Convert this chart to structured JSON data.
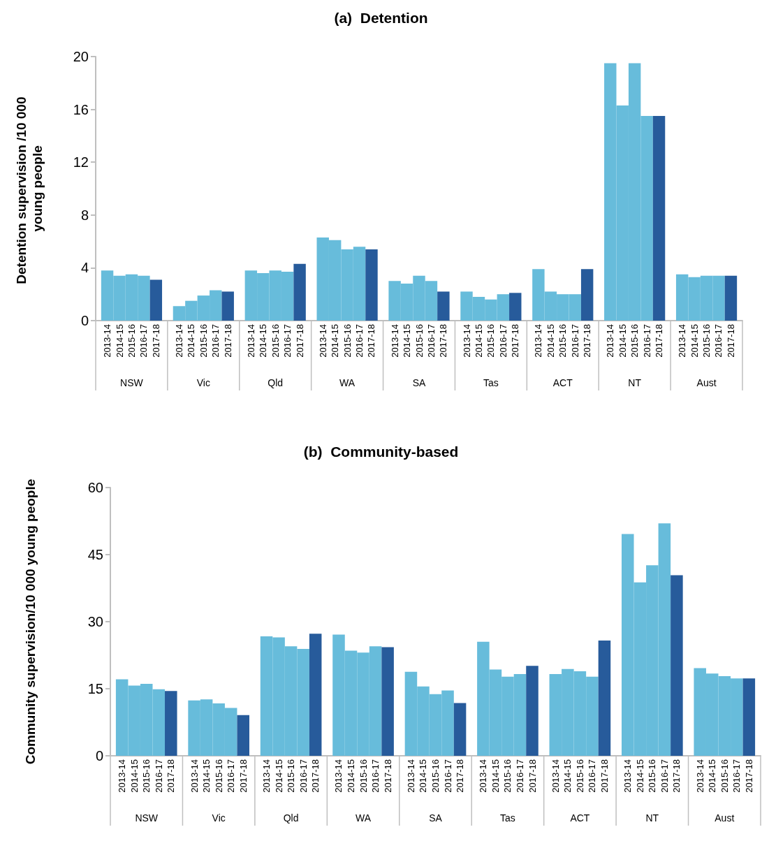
{
  "chart_data": [
    {
      "type": "bar",
      "title": "(a)  Detention",
      "ylabel": "Detention supervision /10 000 young people",
      "categories": [
        "2013-14",
        "2014-15",
        "2015-16",
        "2016-17",
        "2017-18",
        "2013-14",
        "2014-15",
        "2015-16",
        "2016-17",
        "2017-18",
        "2013-14",
        "2014-15",
        "2015-16",
        "2016-17",
        "2017-18",
        "2013-14",
        "2014-15",
        "2015-16",
        "2016-17",
        "2017-18",
        "2013-14",
        "2014-15",
        "2015-16",
        "2016-17",
        "2017-18",
        "2013-14",
        "2014-15",
        "2015-16",
        "2016-17",
        "2017-18",
        "2013-14",
        "2014-15",
        "2015-16",
        "2016-17",
        "2017-18",
        "2013-14",
        "2014-15",
        "2015-16",
        "2016-17",
        "2017-18",
        "2013-14",
        "2014-15",
        "2015-16",
        "2016-17",
        "2017-18"
      ],
      "values": [
        3.8,
        3.4,
        3.5,
        3.4,
        3.1,
        1.1,
        1.5,
        1.9,
        2.3,
        2.2,
        3.8,
        3.6,
        3.8,
        3.7,
        4.3,
        6.3,
        6.1,
        5.4,
        5.6,
        5.4,
        3.0,
        2.8,
        3.4,
        3.0,
        2.2,
        2.2,
        1.8,
        1.6,
        2.0,
        2.1,
        3.9,
        2.2,
        2.0,
        2.0,
        3.9,
        19.5,
        16.3,
        19.5,
        15.5,
        15.5,
        3.5,
        3.3,
        3.4,
        3.4,
        3.4
      ],
      "colors": [
        "#67bcdb",
        "#67bcdb",
        "#67bcdb",
        "#67bcdb",
        "#275b9b",
        "#67bcdb",
        "#67bcdb",
        "#67bcdb",
        "#67bcdb",
        "#275b9b",
        "#67bcdb",
        "#67bcdb",
        "#67bcdb",
        "#67bcdb",
        "#275b9b",
        "#67bcdb",
        "#67bcdb",
        "#67bcdb",
        "#67bcdb",
        "#275b9b",
        "#67bcdb",
        "#67bcdb",
        "#67bcdb",
        "#67bcdb",
        "#275b9b",
        "#67bcdb",
        "#67bcdb",
        "#67bcdb",
        "#67bcdb",
        "#275b9b",
        "#67bcdb",
        "#67bcdb",
        "#67bcdb",
        "#67bcdb",
        "#275b9b",
        "#67bcdb",
        "#67bcdb",
        "#67bcdb",
        "#67bcdb",
        "#275b9b",
        "#67bcdb",
        "#67bcdb",
        "#67bcdb",
        "#67bcdb",
        "#275b9b"
      ],
      "annotations": [
        "NSW",
        "Vic",
        "Qld",
        "WA",
        "SA",
        "Tas",
        "ACT",
        "NT",
        "Aust"
      ],
      "ylim": [
        0,
        20
      ],
      "yticks": [
        0,
        4,
        8,
        12,
        16,
        20
      ],
      "grid": false
    },
    {
      "type": "bar",
      "title": "(b)  Community-based",
      "ylabel": "Community supervision/10 000 young people",
      "categories": [
        "2013-14",
        "2014-15",
        "2015-16",
        "2016-17",
        "2017-18",
        "2013-14",
        "2014-15",
        "2015-16",
        "2016-17",
        "2017-18",
        "2013-14",
        "2014-15",
        "2015-16",
        "2016-17",
        "2017-18",
        "2013-14",
        "2014-15",
        "2015-16",
        "2016-17",
        "2017-18",
        "2013-14",
        "2014-15",
        "2015-16",
        "2016-17",
        "2017-18",
        "2013-14",
        "2014-15",
        "2015-16",
        "2016-17",
        "2017-18",
        "2013-14",
        "2014-15",
        "2015-16",
        "2016-17",
        "2017-18",
        "2013-14",
        "2014-15",
        "2015-16",
        "2016-17",
        "2017-18",
        "2013-14",
        "2014-15",
        "2015-16",
        "2016-17",
        "2017-18"
      ],
      "values": [
        17.1,
        15.7,
        16.1,
        14.9,
        14.5,
        12.4,
        12.6,
        11.7,
        10.7,
        9.1,
        26.7,
        26.5,
        24.5,
        23.9,
        27.3,
        27.1,
        23.5,
        23.1,
        24.5,
        24.3,
        18.8,
        15.5,
        13.8,
        14.6,
        11.8,
        25.5,
        19.3,
        17.7,
        18.3,
        20.1,
        18.3,
        19.4,
        18.9,
        17.7,
        25.8,
        49.6,
        38.8,
        42.6,
        52.0,
        40.4,
        19.6,
        18.4,
        17.8,
        17.3,
        17.3
      ],
      "colors": [
        "#67bcdb",
        "#67bcdb",
        "#67bcdb",
        "#67bcdb",
        "#275b9b",
        "#67bcdb",
        "#67bcdb",
        "#67bcdb",
        "#67bcdb",
        "#275b9b",
        "#67bcdb",
        "#67bcdb",
        "#67bcdb",
        "#67bcdb",
        "#275b9b",
        "#67bcdb",
        "#67bcdb",
        "#67bcdb",
        "#67bcdb",
        "#275b9b",
        "#67bcdb",
        "#67bcdb",
        "#67bcdb",
        "#67bcdb",
        "#275b9b",
        "#67bcdb",
        "#67bcdb",
        "#67bcdb",
        "#67bcdb",
        "#275b9b",
        "#67bcdb",
        "#67bcdb",
        "#67bcdb",
        "#67bcdb",
        "#275b9b",
        "#67bcdb",
        "#67bcdb",
        "#67bcdb",
        "#67bcdb",
        "#275b9b",
        "#67bcdb",
        "#67bcdb",
        "#67bcdb",
        "#67bcdb",
        "#275b9b"
      ],
      "annotations": [
        "NSW",
        "Vic",
        "Qld",
        "WA",
        "SA",
        "Tas",
        "ACT",
        "NT",
        "Aust"
      ],
      "ylim": [
        0,
        60
      ],
      "yticks": [
        0,
        15,
        30,
        45,
        60
      ],
      "grid": false
    }
  ]
}
